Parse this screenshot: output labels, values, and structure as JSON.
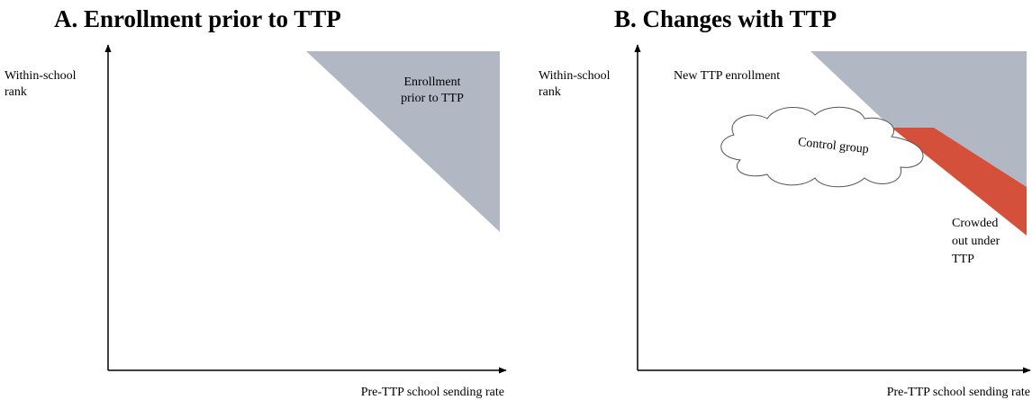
{
  "panels": [
    {
      "title": "A.  Enrollment prior to TTP",
      "y_label": [
        "Within-school",
        "rank"
      ],
      "x_label": "Pre-TTP school sending rate",
      "annotations": [
        [
          "Enrollment",
          "prior to TTP"
        ]
      ]
    },
    {
      "title": "B. Changes with TTP",
      "y_label": [
        "Within-school",
        "rank"
      ],
      "x_label": "Pre-TTP school sending rate",
      "annotations": [
        [
          "New TTP enrollment"
        ],
        [
          "Control group"
        ],
        [
          "Crowded",
          "out under",
          "TTP"
        ]
      ]
    }
  ]
}
